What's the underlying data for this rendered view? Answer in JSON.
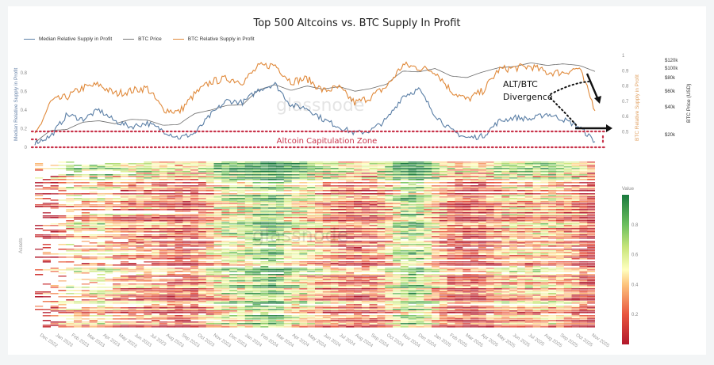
{
  "title": "Top 500 Altcoins vs. BTC Supply In Profit",
  "legend": [
    {
      "label": "Median Relative Supply in Profit",
      "color": "#5b7fa6"
    },
    {
      "label": "BTC Price",
      "color": "#555555"
    },
    {
      "label": "BTC Relative Supply in Profit",
      "color": "#e0893a"
    }
  ],
  "watermark": "glassnode",
  "annotations": {
    "divergence_line1": "ALT/BTC",
    "divergence_line2": "Divergence",
    "zone_label": "Altcoin Capitulation Zone"
  },
  "axes": {
    "left_label": "Median Relative Supply in Profit",
    "right1_label": "BTC Relative Supply in Profit",
    "right2_label": "BTC Price (USD)",
    "heatmap_y_label": "Assets",
    "colorbar_title": "Value"
  },
  "colors": {
    "median": "#5b7fa6",
    "btc_price": "#555555",
    "btc_rel": "#e0893a",
    "zone": "#c8334a",
    "heat_low": "#b2182b",
    "heat_mid": "#ffffbf",
    "heat_high": "#1a7a3e"
  },
  "chart_data": [
    {
      "type": "line",
      "title": "Top 500 Altcoins vs. BTC Supply In Profit",
      "x": [
        "Dec 2022",
        "Jan 2023",
        "Feb 2023",
        "Mar 2023",
        "Apr 2023",
        "May 2023",
        "Jun 2023",
        "Jul 2023",
        "Aug 2023",
        "Sep 2023",
        "Oct 2023",
        "Nov 2023",
        "Dec 2023",
        "Jan 2024",
        "Feb 2024",
        "Mar 2024",
        "Apr 2024",
        "May 2024",
        "Jun 2024",
        "Jul 2024",
        "Aug 2024",
        "Sep 2024",
        "Oct 2024",
        "Nov 2024",
        "Dec 2024",
        "Jan 2025",
        "Feb 2025",
        "Mar 2025",
        "Apr 2025",
        "May 2025",
        "Jun 2025",
        "Jul 2025",
        "Aug 2025",
        "Sep 2025",
        "Oct 2025",
        "Nov 2025"
      ],
      "series": [
        {
          "name": "Median Relative Supply in Profit",
          "axis": "left",
          "values": [
            0.05,
            0.12,
            0.35,
            0.3,
            0.4,
            0.28,
            0.22,
            0.26,
            0.18,
            0.1,
            0.15,
            0.35,
            0.5,
            0.48,
            0.62,
            0.68,
            0.45,
            0.42,
            0.3,
            0.22,
            0.15,
            0.18,
            0.3,
            0.55,
            0.62,
            0.35,
            0.18,
            0.1,
            0.12,
            0.28,
            0.32,
            0.3,
            0.36,
            0.3,
            0.22,
            0.06
          ]
        },
        {
          "name": "BTC Price",
          "axis": "right2",
          "unit": "USD",
          "values": [
            17000,
            23000,
            23500,
            28000,
            29000,
            27000,
            30000,
            29500,
            26000,
            26500,
            34500,
            37500,
            42000,
            42500,
            61000,
            69000,
            60000,
            67000,
            62000,
            66000,
            59000,
            63000,
            70000,
            96000,
            94000,
            102000,
            85000,
            82000,
            94000,
            104000,
            107000,
            117000,
            110000,
            114000,
            110000,
            95000
          ]
        },
        {
          "name": "BTC Relative Supply in Profit",
          "axis": "right1",
          "values": [
            0.52,
            0.75,
            0.78,
            0.84,
            0.86,
            0.8,
            0.82,
            0.84,
            0.7,
            0.68,
            0.8,
            0.88,
            0.9,
            0.88,
            0.98,
            0.99,
            0.88,
            0.9,
            0.82,
            0.84,
            0.74,
            0.78,
            0.85,
            0.99,
            0.97,
            0.95,
            0.82,
            0.76,
            0.82,
            0.96,
            0.97,
            0.98,
            0.94,
            0.94,
            0.97,
            0.7
          ]
        }
      ],
      "ylim_left": [
        0,
        0.9
      ],
      "left_ticks": [
        "0",
        "0.2",
        "0.4",
        "0.6",
        "0.8"
      ],
      "ylim_right1": [
        0.45,
        1.0
      ],
      "right1_ticks": [
        "0.5",
        "0.6",
        "0.7",
        "0.8",
        "0.9",
        "1"
      ],
      "right2_ticks": [
        "$20k",
        "$40k",
        "$60k",
        "$80k",
        "$100k",
        "$120k"
      ],
      "annotations": [
        "ALT/BTC Divergence",
        "Altcoin Capitulation Zone"
      ],
      "capitulation_zone": [
        0,
        0.18
      ],
      "grid": false,
      "legend_position": "top-left"
    },
    {
      "type": "heatmap",
      "title": "",
      "xlabel": "",
      "ylabel": "Assets",
      "x": [
        "Dec 2022",
        "Jan 2023",
        "Feb 2023",
        "Mar 2023",
        "Apr 2023",
        "May 2023",
        "Jun 2023",
        "Jul 2023",
        "Aug 2023",
        "Sep 2023",
        "Oct 2023",
        "Nov 2023",
        "Dec 2023",
        "Jan 2024",
        "Feb 2024",
        "Mar 2024",
        "Apr 2024",
        "May 2024",
        "Jun 2024",
        "Jul 2024",
        "Aug 2024",
        "Sep 2024",
        "Oct 2024",
        "Nov 2024",
        "Dec 2024",
        "Jan 2025",
        "Feb 2025",
        "Mar 2025",
        "Apr 2025",
        "May 2025",
        "Jun 2025",
        "Jul 2025",
        "Aug 2025",
        "Sep 2025",
        "Oct 2025",
        "Nov 2025"
      ],
      "rows": 500,
      "colorbar": {
        "title": "Value",
        "ticks": [
          "0.2",
          "0.4",
          "0.6",
          "0.8"
        ],
        "range": [
          0,
          1
        ],
        "colorscale": "RdYlGn"
      }
    }
  ]
}
